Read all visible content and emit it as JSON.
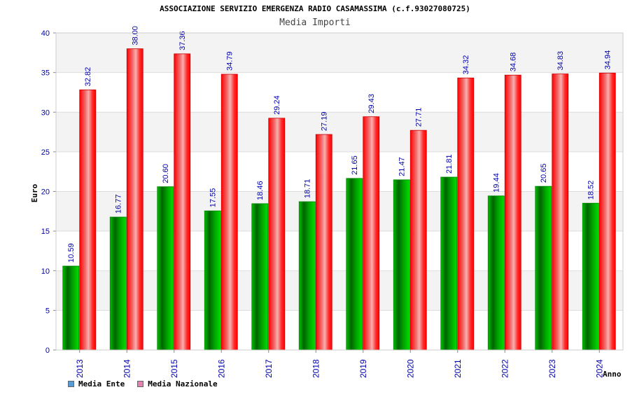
{
  "chart_data": {
    "type": "bar",
    "title": "ASSOCIAZIONE SERVIZIO EMERGENZA RADIO CASAMASSIMA (c.f.93027080725)",
    "subtitle": "Media Importi",
    "xlabel": "Anno",
    "ylabel": "Euro",
    "ylim": [
      0,
      40
    ],
    "yticks": [
      "0",
      "5",
      "10",
      "15",
      "20",
      "25",
      "30",
      "35",
      "40"
    ],
    "categories": [
      "2013",
      "2014",
      "2015",
      "2016",
      "2017",
      "2018",
      "2019",
      "2020",
      "2021",
      "2022",
      "2023",
      "2024"
    ],
    "series": [
      {
        "name": "Media Ente",
        "values": [
          10.59,
          16.77,
          20.6,
          17.55,
          18.46,
          18.71,
          21.65,
          21.47,
          21.81,
          19.44,
          20.65,
          18.52
        ],
        "labels": [
          "10.59",
          "16.77",
          "20.60",
          "17.55",
          "18.46",
          "18.71",
          "21.65",
          "21.47",
          "21.81",
          "19.44",
          "20.65",
          "18.52"
        ],
        "color": "#00aa00"
      },
      {
        "name": "Media Nazionale",
        "values": [
          32.82,
          38.0,
          37.36,
          34.79,
          29.24,
          27.19,
          29.43,
          27.71,
          34.32,
          34.68,
          34.83,
          34.94
        ],
        "labels": [
          "32.82",
          "38.00",
          "37.36",
          "34.79",
          "29.24",
          "27.19",
          "29.43",
          "27.71",
          "34.32",
          "34.68",
          "34.83",
          "34.94"
        ],
        "color": "#ee0000"
      }
    ],
    "legend": {
      "position": "bottom-left",
      "items": [
        {
          "label": "Media Ente",
          "color": "#5b9bd5"
        },
        {
          "label": "Media Nazionale",
          "color": "#e87fb0"
        }
      ]
    },
    "grid": true
  }
}
